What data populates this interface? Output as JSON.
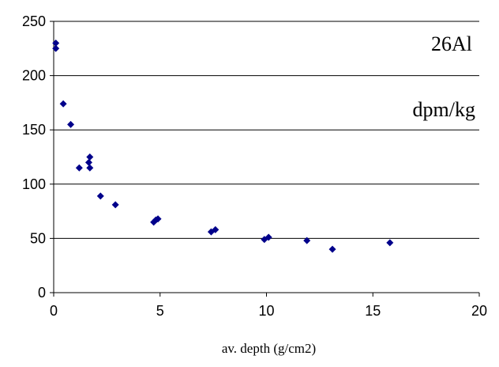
{
  "chart_data": {
    "type": "scatter",
    "title": "",
    "xlabel": "av. depth (g/cm2)",
    "ylabel": "",
    "xlim": [
      0,
      20
    ],
    "ylim": [
      0,
      250
    ],
    "x_ticks": [
      0,
      5,
      10,
      15,
      20
    ],
    "y_ticks": [
      0,
      50,
      100,
      150,
      200,
      250
    ],
    "x_tick_labels": [
      "0",
      "5",
      "10",
      "15",
      "20"
    ],
    "y_tick_labels": [
      "0",
      "50",
      "100",
      "150",
      "200",
      "250"
    ],
    "grid": "horizontal",
    "legend": "none",
    "marker_color": "#00008B",
    "annotations": [
      "26Al",
      "dpm/kg"
    ],
    "series": [
      {
        "x": [
          0.1,
          0.1,
          0.45,
          0.8,
          1.2,
          1.65,
          1.7,
          1.7,
          2.2,
          2.9,
          4.7,
          4.8,
          4.9,
          7.4,
          7.6,
          9.9,
          10.1,
          11.9,
          13.1,
          15.8
        ],
        "y": [
          230,
          225,
          174,
          155,
          115,
          120,
          125,
          115,
          89,
          81,
          65,
          67,
          68,
          56,
          58,
          49,
          51,
          48,
          40,
          46
        ]
      }
    ]
  }
}
